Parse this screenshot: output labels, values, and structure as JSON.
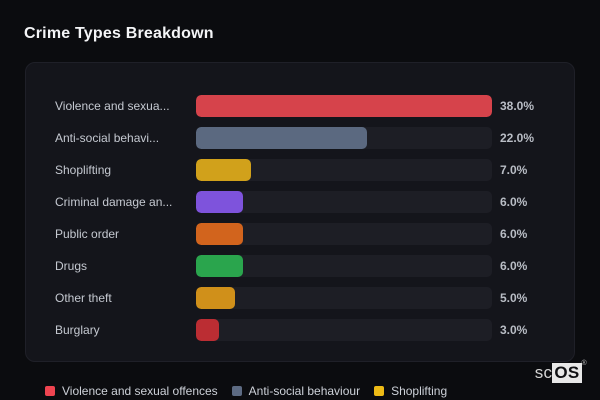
{
  "page": {
    "title": "Crime Types Breakdown",
    "brand": {
      "prefix": "sc",
      "suffix": "OS",
      "registered": "®"
    }
  },
  "colors": {
    "page_bg": "#0b0c0f",
    "panel_bg": "#14151b",
    "track": "#1d1e25",
    "title_text": "#f4f5f7",
    "label_text": "#c5c9d1",
    "value_text": "#b9bdc5"
  },
  "chart_data": {
    "type": "bar",
    "orientation": "horizontal",
    "title": "Crime Types Breakdown",
    "unit": "%",
    "xlim": [
      0,
      38
    ],
    "grid": false,
    "legend_position": "bottom-left",
    "categories": [
      "Violence and sexua...",
      "Anti-social behavi...",
      "Shoplifting",
      "Criminal damage an...",
      "Public order",
      "Drugs",
      "Other theft",
      "Burglary"
    ],
    "values": [
      38.0,
      22.0,
      7.0,
      6.0,
      6.0,
      6.0,
      5.0,
      3.0
    ],
    "value_labels": [
      "38.0%",
      "22.0%",
      "7.0%",
      "6.0%",
      "6.0%",
      "6.0%",
      "5.0%",
      "3.0%"
    ],
    "bar_colors": [
      "#d6434b",
      "#5b6980",
      "#d1a11b",
      "#7e53dc",
      "#d2641d",
      "#2aa54d",
      "#d0901a",
      "#bb2d33"
    ],
    "legend": [
      {
        "label": "Violence and sexual offences",
        "color": "#ef4450"
      },
      {
        "label": "Anti-social behaviour",
        "color": "#5d6b83"
      },
      {
        "label": "Shoplifting",
        "color": "#eebb16"
      }
    ]
  }
}
